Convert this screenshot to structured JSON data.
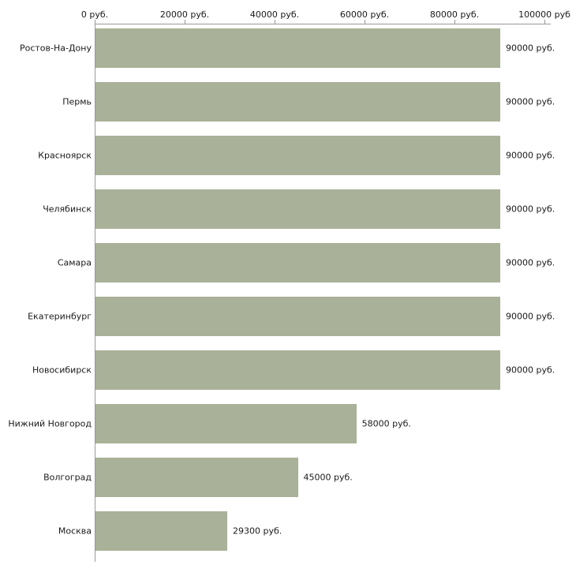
{
  "chart_data": {
    "type": "bar",
    "orientation": "horizontal",
    "title": "",
    "xlabel": "",
    "ylabel": "",
    "grid": false,
    "legend": null,
    "xlim": [
      0,
      100000
    ],
    "categories": [
      "Ростов-На-Дону",
      "Пермь",
      "Красноярск",
      "Челябинск",
      "Самара",
      "Екатеринбург",
      "Новосибирск",
      "Нижний Новгород",
      "Волгоград",
      "Москва"
    ],
    "values": [
      90000,
      90000,
      90000,
      90000,
      90000,
      90000,
      90000,
      58000,
      45000,
      29300
    ],
    "value_labels": [
      "90000 руб.",
      "90000 руб.",
      "90000 руб.",
      "90000 руб.",
      "90000 руб.",
      "90000 руб.",
      "90000 руб.",
      "58000 руб.",
      "45000 руб.",
      "29300 руб."
    ],
    "x_ticks": [
      {
        "value": 0,
        "label": "0 руб."
      },
      {
        "value": 20000,
        "label": "20000 руб."
      },
      {
        "value": 40000,
        "label": "40000 руб."
      },
      {
        "value": 60000,
        "label": "60000 руб."
      },
      {
        "value": 80000,
        "label": "80000 руб."
      },
      {
        "value": 100000,
        "label": "100000 руб"
      }
    ],
    "colors": {
      "bar": "#a9b198",
      "axis": "#999999",
      "text": "#1a1a1a"
    }
  }
}
